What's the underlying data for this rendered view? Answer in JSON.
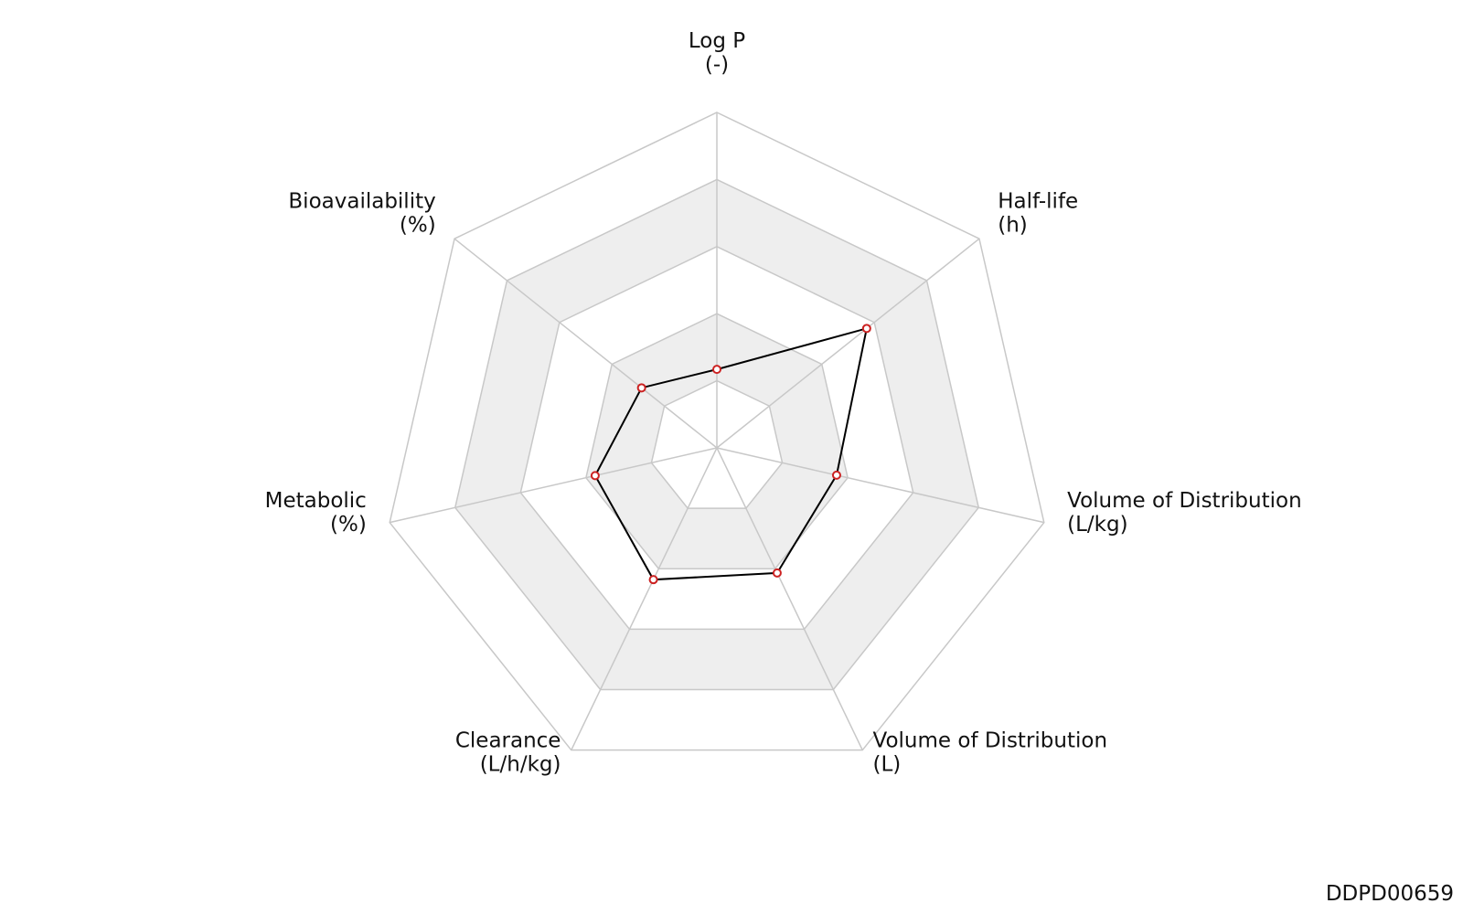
{
  "chart_data": {
    "type": "radar",
    "categories": [
      "Log P",
      "Half-life",
      "Volume of Distribution",
      "Volume of Distribution",
      "Clearance",
      "Metabolic",
      "Bioavailability"
    ],
    "units": [
      "(-)",
      "(h)",
      "(L/kg)",
      "(L)",
      "(L/h/kg)",
      "(%)",
      "(%)"
    ],
    "values": [
      0.234,
      0.571,
      0.366,
      0.414,
      0.436,
      0.372,
      0.287
    ],
    "rlim": [
      0,
      1
    ],
    "rticks": [
      0.2,
      0.4,
      0.6,
      0.8,
      1.0
    ],
    "line_color": "#000000",
    "marker_color": "#cc2222",
    "band_color": "#eeeeee",
    "grid_color": "#c8c8c8",
    "footer": "DDPD00659"
  }
}
